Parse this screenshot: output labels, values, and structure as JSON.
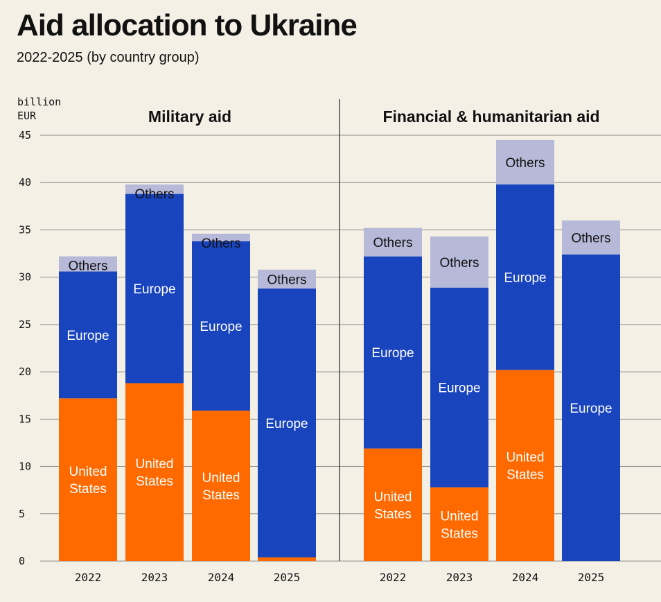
{
  "header": {
    "title": "Aid allocation to Ukraine",
    "subtitle": "2022-2025 (by country group)"
  },
  "colors": {
    "background": "#f4f0e6",
    "united_states": "#fe6a00",
    "europe": "#1844be",
    "others": "#b7b9d8",
    "gridline": "#8a8a8a",
    "text_dark": "#111111",
    "text_light": "#ffffff"
  },
  "chart_data": {
    "type": "bar",
    "stacked": true,
    "unit_label": [
      "billion",
      "EUR"
    ],
    "ylim": [
      0,
      45
    ],
    "yticks": [
      0,
      5,
      10,
      15,
      20,
      25,
      30,
      35,
      40,
      45
    ],
    "grid": true,
    "panels": [
      {
        "title": "Military aid",
        "categories": [
          "2022",
          "2023",
          "2024",
          "2025"
        ],
        "series": [
          {
            "name": "United States",
            "key": "united_states",
            "values": [
              17.2,
              18.8,
              15.9,
              0.4
            ]
          },
          {
            "name": "Europe",
            "key": "europe",
            "values": [
              13.4,
              20.0,
              17.9,
              28.4
            ]
          },
          {
            "name": "Others",
            "key": "others",
            "values": [
              1.6,
              1.0,
              0.8,
              2.0
            ]
          }
        ]
      },
      {
        "title": "Financial & humanitarian aid",
        "categories": [
          "2022",
          "2023",
          "2024",
          "2025"
        ],
        "series": [
          {
            "name": "United States",
            "key": "united_states",
            "values": [
              11.9,
              7.8,
              20.2,
              0
            ]
          },
          {
            "name": "Europe",
            "key": "europe",
            "values": [
              20.3,
              21.1,
              19.6,
              32.4
            ]
          },
          {
            "name": "Others",
            "key": "others",
            "values": [
              3.0,
              5.4,
              4.7,
              3.6
            ]
          }
        ]
      }
    ]
  }
}
